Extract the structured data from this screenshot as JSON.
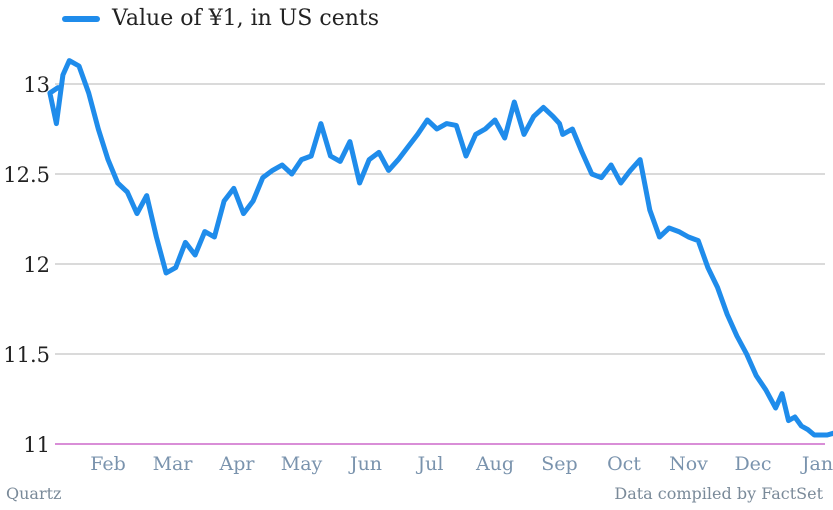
{
  "chart_data": {
    "type": "line",
    "legend": {
      "label": "Value of ¥1, in US cents",
      "placement": "top-left"
    },
    "x_tick_labels": [
      "Feb",
      "Mar",
      "Apr",
      "May",
      "Jun",
      "Jul",
      "Aug",
      "Sep",
      "Oct",
      "Nov",
      "Dec",
      "Jan"
    ],
    "y_ticks": [
      11,
      11.5,
      12,
      12.5,
      13
    ],
    "ylim": [
      11,
      13.25
    ],
    "grid": true,
    "series": [
      {
        "name": "Value of ¥1, in US cents",
        "color": "#1f8ceb",
        "x_month": [
          0,
          0.1,
          0.2,
          0.3,
          0.4,
          0.55,
          0.7,
          0.85,
          1.0,
          1.15,
          1.3,
          1.45,
          1.6,
          1.75,
          1.9,
          2.05,
          2.2,
          2.35,
          2.5,
          2.65,
          2.8,
          2.95,
          3.1,
          3.25,
          3.4,
          3.55,
          3.7,
          3.85,
          4.0,
          4.15,
          4.3,
          4.45,
          4.6,
          4.75,
          4.9,
          5.05,
          5.2,
          5.35,
          5.5,
          5.65,
          5.8,
          5.95,
          6.1,
          6.25,
          6.4,
          6.55,
          6.7,
          6.85,
          7.0,
          7.15,
          7.3,
          7.45,
          7.6,
          7.75,
          7.9,
          8.0,
          8.05,
          8.2,
          8.35,
          8.5,
          8.65,
          8.8,
          8.95,
          9.1,
          9.25,
          9.4,
          9.55,
          9.7,
          9.85,
          10.0,
          10.15,
          10.3,
          10.45,
          10.6,
          10.75,
          10.9,
          11.05,
          11.2,
          11.35,
          11.45,
          11.55,
          11.65,
          11.75,
          11.85,
          11.95,
          12.05,
          12.15,
          12.25,
          12.3,
          12.4,
          12.5
        ],
        "values": [
          12.98,
          12.95,
          12.78,
          13.05,
          13.13,
          13.1,
          12.95,
          12.75,
          12.58,
          12.45,
          12.4,
          12.28,
          12.38,
          12.15,
          11.95,
          11.98,
          12.12,
          12.05,
          12.18,
          12.15,
          12.35,
          12.42,
          12.28,
          12.35,
          12.48,
          12.52,
          12.55,
          12.5,
          12.58,
          12.6,
          12.78,
          12.6,
          12.57,
          12.68,
          12.45,
          12.58,
          12.62,
          12.52,
          12.58,
          12.65,
          12.72,
          12.8,
          12.75,
          12.78,
          12.77,
          12.6,
          12.72,
          12.75,
          12.8,
          12.7,
          12.9,
          12.72,
          12.82,
          12.87,
          12.82,
          12.78,
          12.72,
          12.75,
          12.62,
          12.5,
          12.48,
          12.55,
          12.45,
          12.52,
          12.58,
          12.3,
          12.15,
          12.2,
          12.18,
          12.15,
          12.13,
          11.98,
          11.87,
          11.72,
          11.6,
          11.5,
          11.38,
          11.3,
          11.2,
          11.28,
          11.13,
          11.15,
          11.1,
          11.08,
          11.05,
          11.05,
          11.05,
          11.06,
          11.05,
          11.05,
          11.05
        ]
      }
    ]
  },
  "footer": {
    "source_left": "Quartz",
    "source_right": "Data compiled by FactSet"
  }
}
